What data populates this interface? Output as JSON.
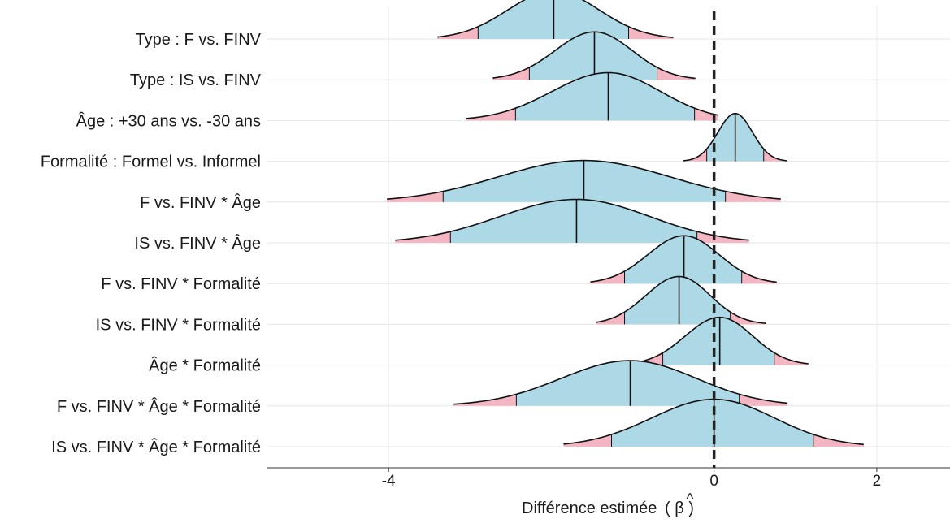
{
  "chart_data": {
    "type": "ridgeline",
    "xlabel": "Différence estimée",
    "xlabel_symbol": "β",
    "xlabel_accent": "^",
    "xlim": [
      -5.5,
      2.9
    ],
    "xticks": [
      -4,
      0,
      2
    ],
    "xtick_labels": [
      "-4",
      "0",
      "2"
    ],
    "reference_line": 0,
    "colors": {
      "inner": "#add8e6",
      "tails": "#f4b6c2",
      "outline": "#111111"
    },
    "series": [
      {
        "name": "Type : F vs. FINV",
        "min": -3.4,
        "q05": -2.9,
        "median": -1.97,
        "q95": -1.05,
        "max": -0.5
      },
      {
        "name": "Type : IS vs. FINV",
        "min": -2.72,
        "q05": -2.27,
        "median": -1.47,
        "q95": -0.7,
        "max": -0.23
      },
      {
        "name": "Âge : +30 ans vs. -30 ans",
        "min": -3.05,
        "q05": -2.44,
        "median": -1.3,
        "q95": -0.24,
        "max": 0.05
      },
      {
        "name": "Formalité : Formel vs. Informel",
        "min": -0.38,
        "q05": -0.09,
        "median": 0.26,
        "q95": 0.61,
        "max": 0.9
      },
      {
        "name": "F vs. FINV * Âge",
        "min": -4.02,
        "q05": -3.33,
        "median": -1.6,
        "q95": 0.14,
        "max": 0.82
      },
      {
        "name": "IS vs. FINV * Âge",
        "min": -3.92,
        "q05": -3.24,
        "median": -1.69,
        "q95": -0.21,
        "max": 0.43
      },
      {
        "name": "F vs. FINV * Formalité",
        "min": -1.52,
        "q05": -1.1,
        "median": -0.37,
        "q95": 0.34,
        "max": 0.77
      },
      {
        "name": "IS vs. FINV * Formalité",
        "min": -1.45,
        "q05": -1.1,
        "median": -0.43,
        "q95": 0.2,
        "max": 0.64
      },
      {
        "name": "Âge * Formalité",
        "min": -1.02,
        "q05": -0.63,
        "median": 0.07,
        "q95": 0.74,
        "max": 1.16
      },
      {
        "name": "F vs. FINV * Âge * Formalité",
        "min": -3.2,
        "q05": -2.43,
        "median": -1.03,
        "q95": 0.31,
        "max": 0.9
      },
      {
        "name": "IS vs. FINV * Âge * Formalité",
        "min": -1.85,
        "q05": -1.26,
        "median": 0.0,
        "q95": 1.22,
        "max": 1.84
      }
    ]
  }
}
